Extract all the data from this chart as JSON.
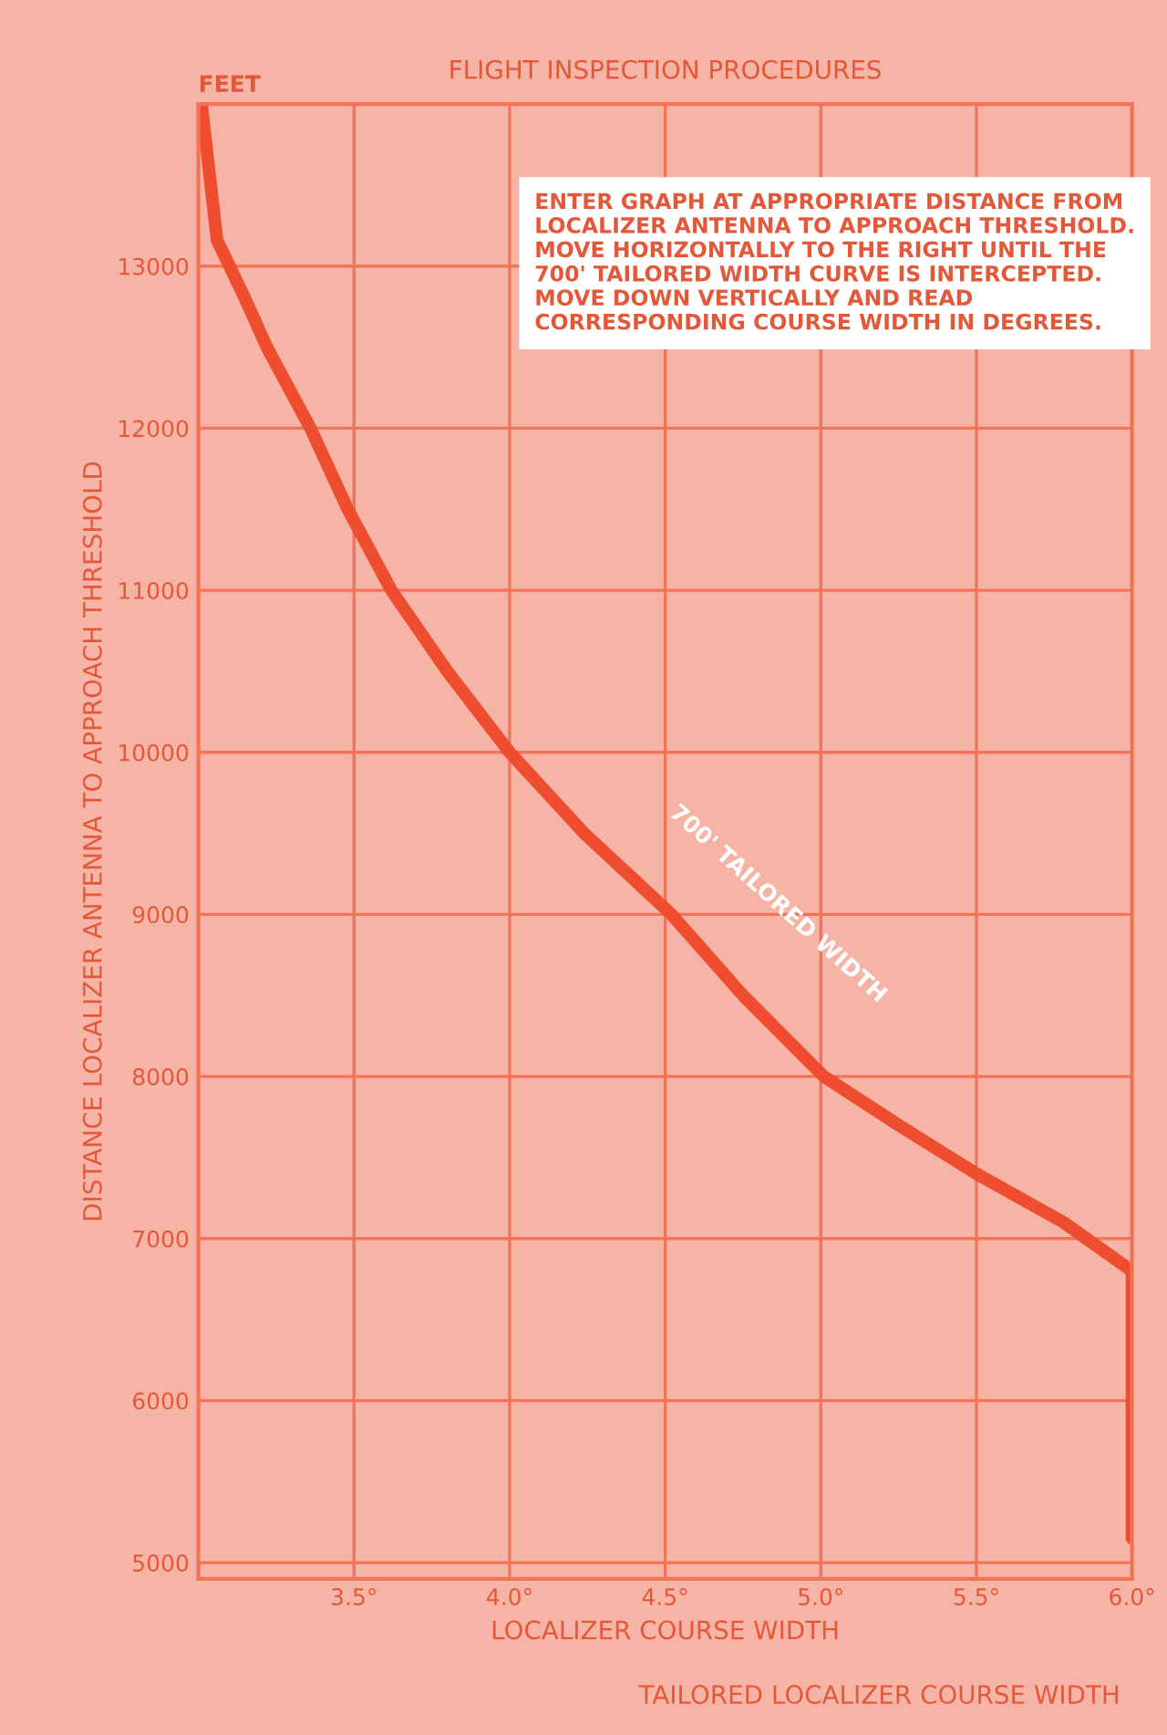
{
  "chart_data": {
    "type": "line",
    "title": "FLIGHT INSPECTION PROCEDURES",
    "xlabel": "LOCALIZER COURSE WIDTH",
    "ylabel": "DISTANCE LOCALIZER ANTENNA TO APPROACH THRESHOLD",
    "x": [
      3.01,
      3.06,
      3.15,
      3.22,
      3.36,
      3.48,
      3.62,
      3.8,
      4.0,
      4.24,
      4.52,
      4.75,
      5.01,
      5.25,
      5.5,
      5.78,
      6.0,
      6.0
    ],
    "series": [
      {
        "color": "#ee4e2f",
        "values": [
          14000,
          13160,
          12800,
          12500,
          12000,
          11500,
          11000,
          10500,
          10000,
          9500,
          9000,
          8500,
          8000,
          7700,
          7400,
          7100,
          6800,
          5150
        ]
      }
    ],
    "xlim": [
      3.0,
      6.0
    ],
    "ylim": [
      4900,
      14000
    ],
    "xticks": [
      {
        "value": 3.5,
        "label": "3.5°"
      },
      {
        "value": 4.0,
        "label": "4.0°"
      },
      {
        "value": 4.5,
        "label": "4.5°"
      },
      {
        "value": 5.0,
        "label": "5.0°"
      },
      {
        "value": 5.5,
        "label": "5.5°"
      },
      {
        "value": 6.0,
        "label": "6.0°"
      }
    ],
    "yticks": [
      5000,
      6000,
      7000,
      8000,
      9000,
      10000,
      11000,
      12000,
      13000
    ],
    "grid": true,
    "marker": "none",
    "line_style": "solid",
    "annotations": [
      "FEET",
      "TAILORED LOCALIZER COURSE WIDTH",
      "ENTER GRAPH AT APPROPRIATE DISTANCE FROM LOCALIZER ANTENNA TO APPROACH THRESHOLD. MOVE HORIZONTALLY TO THE RIGHT UNTIL THE 700' TAILORED WIDTH CURVE IS INTERCEPTED. MOVE DOWN VERTICALLY AND READ CORRESPONDING COURSE WIDTH IN DEGREES.",
      {
        "text": "700' TAILORED WIDTH",
        "x": 4.52,
        "y": 9000
      }
    ]
  }
}
